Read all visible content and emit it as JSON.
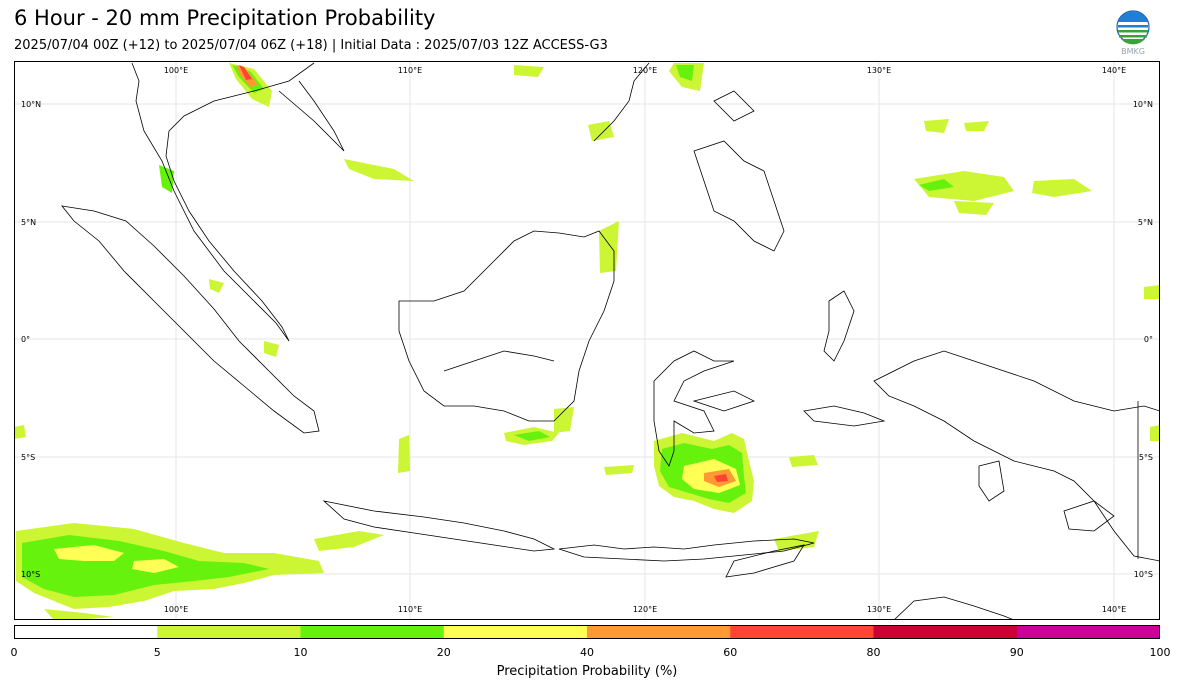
{
  "header": {
    "title": "6 Hour - 20 mm Precipitation Probability",
    "subtitle": "2025/07/04 00Z (+12) to 2025/07/04 06Z (+18) | Initial Data : 2025/07/03 12Z ACCESS-G3",
    "logo_text": "BMKG"
  },
  "map": {
    "lon_labels": [
      "100°E",
      "110°E",
      "120°E",
      "130°E",
      "140°E"
    ],
    "lat_labels": [
      "10°N",
      "5°N",
      "0°",
      "5°S",
      "10°S"
    ],
    "grid": true,
    "land_outline_color": "#000000"
  },
  "colorbar": {
    "label": "Precipitation Probability (%)",
    "ticks": [
      "0",
      "5",
      "10",
      "20",
      "40",
      "60",
      "80",
      "90",
      "100"
    ],
    "colors": [
      "#ffffff",
      "#ccf533",
      "#66f20d",
      "#ffff55",
      "#ff9933",
      "#ff4433",
      "#cc0033",
      "#cc0099"
    ]
  }
}
